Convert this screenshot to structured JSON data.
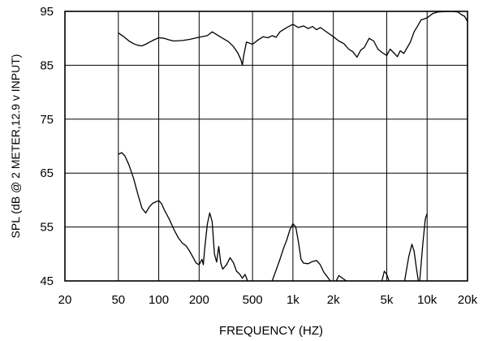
{
  "chart_data": {
    "type": "line",
    "xlabel": "FREQUENCY (HZ)",
    "ylabel": "SPL (dB @ 2 METER,12.9 v INPUT)",
    "x_scale": "log",
    "xlim": [
      20,
      20000
    ],
    "ylim": [
      45,
      95
    ],
    "x_ticks": [
      {
        "value": 20,
        "label": "20"
      },
      {
        "value": 50,
        "label": "50"
      },
      {
        "value": 100,
        "label": "100"
      },
      {
        "value": 200,
        "label": "200"
      },
      {
        "value": 500,
        "label": "500"
      },
      {
        "value": 1000,
        "label": "1k"
      },
      {
        "value": 2000,
        "label": "2k"
      },
      {
        "value": 5000,
        "label": "5k"
      },
      {
        "value": 10000,
        "label": "10k"
      },
      {
        "value": 20000,
        "label": "20k"
      }
    ],
    "y_ticks": [
      {
        "value": 45,
        "label": "45"
      },
      {
        "value": 55,
        "label": "55"
      },
      {
        "value": 65,
        "label": "65"
      },
      {
        "value": 75,
        "label": "75"
      },
      {
        "value": 85,
        "label": "85"
      },
      {
        "value": 95,
        "label": "95"
      }
    ],
    "grid": "major",
    "series": [
      {
        "color": "#000000",
        "points": [
          [
            50,
            91
          ],
          [
            55,
            90.3
          ],
          [
            60,
            89.5
          ],
          [
            65,
            89
          ],
          [
            70,
            88.7
          ],
          [
            75,
            88.6
          ],
          [
            80,
            88.9
          ],
          [
            90,
            89.6
          ],
          [
            100,
            90.1
          ],
          [
            110,
            90
          ],
          [
            120,
            89.7
          ],
          [
            130,
            89.5
          ],
          [
            150,
            89.6
          ],
          [
            170,
            89.8
          ],
          [
            200,
            90.2
          ],
          [
            230,
            90.5
          ],
          [
            250,
            91.2
          ],
          [
            270,
            90.7
          ],
          [
            300,
            90
          ],
          [
            330,
            89.4
          ],
          [
            360,
            88.5
          ],
          [
            390,
            87.2
          ],
          [
            410,
            86
          ],
          [
            420,
            85
          ],
          [
            430,
            86.8
          ],
          [
            450,
            89.3
          ],
          [
            500,
            88.9
          ],
          [
            550,
            89.7
          ],
          [
            600,
            90.3
          ],
          [
            650,
            90.1
          ],
          [
            700,
            90.5
          ],
          [
            750,
            90.2
          ],
          [
            800,
            91.2
          ],
          [
            900,
            92
          ],
          [
            1000,
            92.6
          ],
          [
            1100,
            92
          ],
          [
            1200,
            92.3
          ],
          [
            1300,
            91.8
          ],
          [
            1400,
            92.2
          ],
          [
            1500,
            91.6
          ],
          [
            1600,
            92
          ],
          [
            1800,
            91.1
          ],
          [
            2000,
            90.3
          ],
          [
            2200,
            89.5
          ],
          [
            2400,
            89
          ],
          [
            2600,
            88
          ],
          [
            2800,
            87.5
          ],
          [
            3000,
            86.5
          ],
          [
            3200,
            87.8
          ],
          [
            3400,
            88.3
          ],
          [
            3700,
            90
          ],
          [
            4000,
            89.5
          ],
          [
            4300,
            88
          ],
          [
            4600,
            87.4
          ],
          [
            5000,
            86.8
          ],
          [
            5300,
            88
          ],
          [
            5600,
            87.4
          ],
          [
            6000,
            86.6
          ],
          [
            6300,
            87.7
          ],
          [
            6700,
            87.2
          ],
          [
            7000,
            88
          ],
          [
            7500,
            89.3
          ],
          [
            8000,
            91.2
          ],
          [
            8500,
            92.3
          ],
          [
            9000,
            93.4
          ],
          [
            10000,
            93.8
          ],
          [
            11000,
            94.6
          ],
          [
            12000,
            94.9
          ],
          [
            15000,
            95
          ],
          [
            17000,
            94.9
          ],
          [
            18000,
            94.4
          ],
          [
            19000,
            94.1
          ],
          [
            20000,
            93.1
          ]
        ]
      },
      {
        "color": "#000000",
        "segments": [
          [
            [
              50,
              68.5
            ],
            [
              53,
              68.8
            ],
            [
              56,
              68.2
            ],
            [
              60,
              66.5
            ],
            [
              65,
              64
            ],
            [
              70,
              61
            ],
            [
              75,
              58.5
            ],
            [
              80,
              57.6
            ],
            [
              85,
              58.7
            ],
            [
              90,
              59.4
            ],
            [
              100,
              59.9
            ],
            [
              105,
              59.3
            ],
            [
              110,
              58.2
            ],
            [
              120,
              56.4
            ],
            [
              130,
              54.5
            ],
            [
              140,
              53
            ],
            [
              150,
              52
            ],
            [
              160,
              51.5
            ],
            [
              170,
              50.5
            ],
            [
              180,
              49.4
            ],
            [
              190,
              48.3
            ],
            [
              200,
              48
            ],
            [
              210,
              49
            ],
            [
              215,
              48
            ],
            [
              220,
              51
            ],
            [
              230,
              55.5
            ],
            [
              240,
              57.6
            ],
            [
              250,
              56
            ],
            [
              260,
              50
            ],
            [
              270,
              48.5
            ],
            [
              280,
              51.4
            ],
            [
              290,
              48.3
            ],
            [
              300,
              47.2
            ],
            [
              320,
              48
            ],
            [
              340,
              49.3
            ],
            [
              360,
              48.4
            ],
            [
              380,
              46.8
            ],
            [
              400,
              46.3
            ],
            [
              420,
              45.5
            ],
            [
              440,
              46.2
            ],
            [
              460,
              45
            ]
          ],
          [
            [
              700,
              45
            ],
            [
              750,
              47
            ],
            [
              800,
              49
            ],
            [
              850,
              51
            ],
            [
              900,
              52.6
            ],
            [
              950,
              54.5
            ],
            [
              1000,
              55.6
            ],
            [
              1050,
              55
            ],
            [
              1100,
              52.2
            ],
            [
              1150,
              49
            ],
            [
              1200,
              48.3
            ],
            [
              1300,
              48.2
            ],
            [
              1400,
              48.6
            ],
            [
              1500,
              48.8
            ],
            [
              1600,
              48
            ],
            [
              1700,
              46.6
            ],
            [
              1800,
              45.8
            ],
            [
              1900,
              45
            ]
          ],
          [
            [
              2100,
              45
            ],
            [
              2200,
              46
            ],
            [
              2400,
              45.3
            ],
            [
              2500,
              45
            ]
          ],
          [
            [
              4600,
              45
            ],
            [
              4800,
              46.8
            ],
            [
              5000,
              46.2
            ],
            [
              5200,
              45
            ]
          ],
          [
            [
              6800,
              45
            ],
            [
              7300,
              49.5
            ],
            [
              7700,
              51.8
            ],
            [
              8000,
              50.5
            ],
            [
              8300,
              47.5
            ],
            [
              8600,
              45
            ]
          ],
          [
            [
              8800,
              45
            ],
            [
              9300,
              52
            ],
            [
              9700,
              56.5
            ],
            [
              10000,
              57.5
            ]
          ]
        ]
      }
    ]
  }
}
